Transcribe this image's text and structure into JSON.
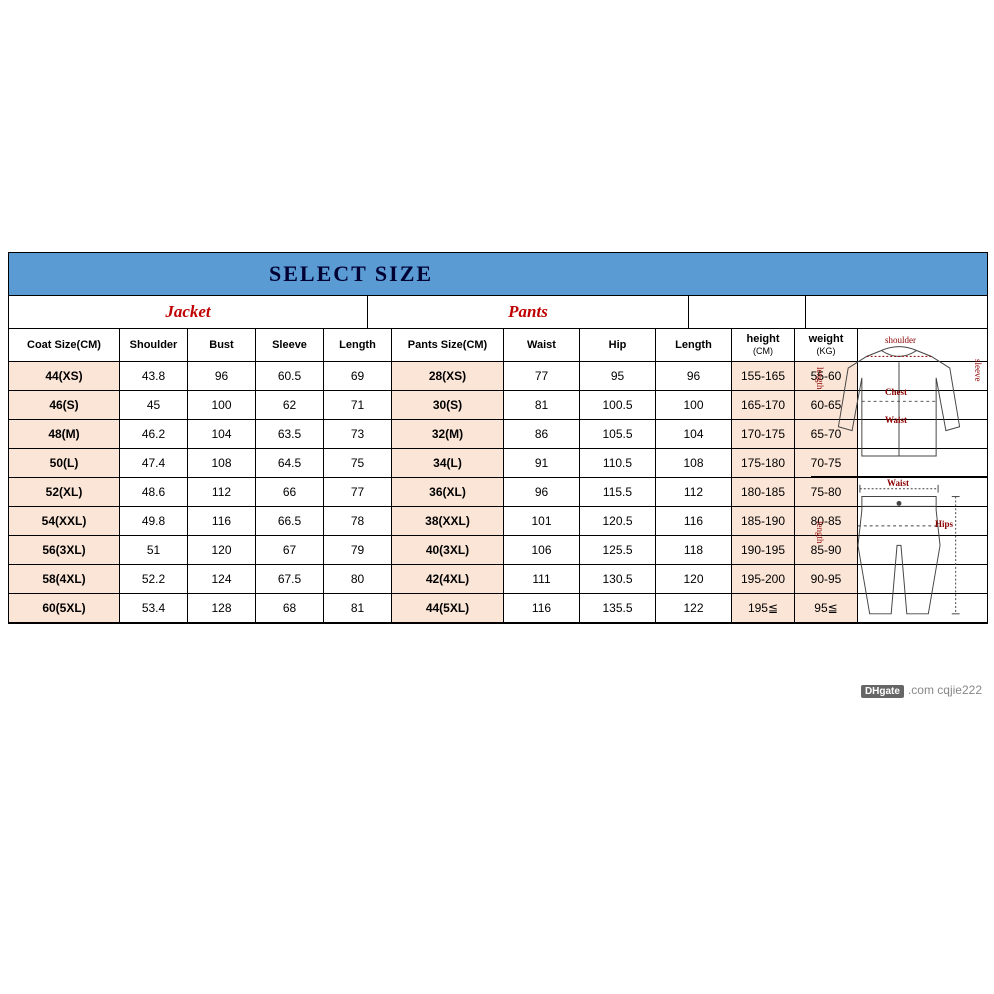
{
  "title": "SELECT SIZE",
  "sections": {
    "jacket": "Jacket",
    "pants": "Pants"
  },
  "jacket_headers": [
    "Coat Size(CM)",
    "Shoulder",
    "Bust",
    "Sleeve",
    "Length"
  ],
  "pants_headers": [
    "Pants Size(CM)",
    "Waist",
    "Hip",
    "Length"
  ],
  "hw_headers": [
    {
      "top": "height",
      "sub": "(CM)"
    },
    {
      "top": "weight",
      "sub": "(KG)"
    }
  ],
  "rows": [
    {
      "coat": "44(XS)",
      "j": [
        "43.8",
        "96",
        "60.5",
        "69"
      ],
      "pants": "28(XS)",
      "p": [
        "77",
        "95",
        "96"
      ],
      "hw": [
        "155-165",
        "55-60"
      ]
    },
    {
      "coat": "46(S)",
      "j": [
        "45",
        "100",
        "62",
        "71"
      ],
      "pants": "30(S)",
      "p": [
        "81",
        "100.5",
        "100"
      ],
      "hw": [
        "165-170",
        "60-65"
      ]
    },
    {
      "coat": "48(M)",
      "j": [
        "46.2",
        "104",
        "63.5",
        "73"
      ],
      "pants": "32(M)",
      "p": [
        "86",
        "105.5",
        "104"
      ],
      "hw": [
        "170-175",
        "65-70"
      ]
    },
    {
      "coat": "50(L)",
      "j": [
        "47.4",
        "108",
        "64.5",
        "75"
      ],
      "pants": "34(L)",
      "p": [
        "91",
        "110.5",
        "108"
      ],
      "hw": [
        "175-180",
        "70-75"
      ]
    },
    {
      "coat": "52(XL)",
      "j": [
        "48.6",
        "112",
        "66",
        "77"
      ],
      "pants": "36(XL)",
      "p": [
        "96",
        "115.5",
        "112"
      ],
      "hw": [
        "180-185",
        "75-80"
      ]
    },
    {
      "coat": "54(XXL)",
      "j": [
        "49.8",
        "116",
        "66.5",
        "78"
      ],
      "pants": "38(XXL)",
      "p": [
        "101",
        "120.5",
        "116"
      ],
      "hw": [
        "185-190",
        "80-85"
      ]
    },
    {
      "coat": "56(3XL)",
      "j": [
        "51",
        "120",
        "67",
        "79"
      ],
      "pants": "40(3XL)",
      "p": [
        "106",
        "125.5",
        "118"
      ],
      "hw": [
        "190-195",
        "85-90"
      ]
    },
    {
      "coat": "58(4XL)",
      "j": [
        "52.2",
        "124",
        "67.5",
        "80"
      ],
      "pants": "42(4XL)",
      "p": [
        "111",
        "130.5",
        "120"
      ],
      "hw": [
        "195-200",
        "90-95"
      ]
    },
    {
      "coat": "60(5XL)",
      "j": [
        "53.4",
        "128",
        "68",
        "81"
      ],
      "pants": "44(5XL)",
      "p": [
        "116",
        "135.5",
        "122"
      ],
      "hw": [
        "195≦",
        "95≦"
      ]
    }
  ],
  "diagram_labels_top": {
    "shoulder": "shoulder",
    "length": "length",
    "sleeve": "sleeve",
    "chest": "Chest",
    "waist": "Waist"
  },
  "diagram_labels_bottom": {
    "waist": "Waist",
    "length": "length",
    "hips": "Hips"
  },
  "watermark": {
    "logo": "DHgate",
    "text": ".com  cqjie222"
  },
  "colors": {
    "title_bg": "#5a9bd4",
    "title_fg": "#000033",
    "section_fg": "#c00000",
    "highlight_bg": "#fbe5d6",
    "border": "#000000",
    "diag_label": "#8b0000",
    "wm": "#888888"
  }
}
